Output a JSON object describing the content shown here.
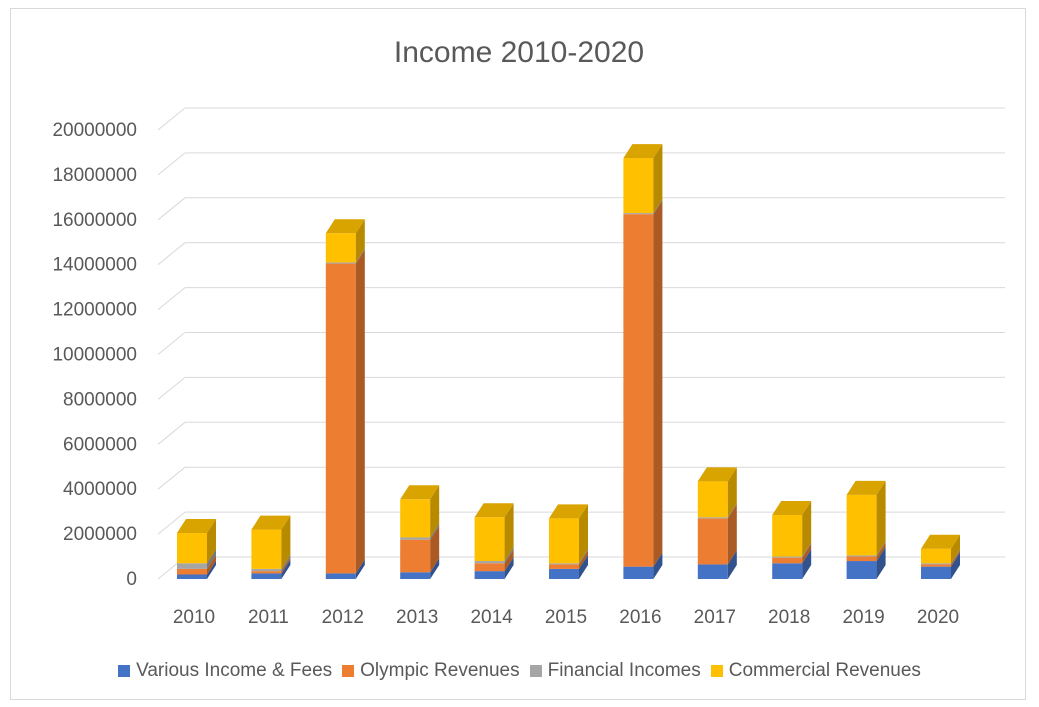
{
  "chart_data": {
    "type": "bar",
    "stacked": true,
    "style": "3d-column",
    "title": "Income 2010-2020",
    "xlabel": "",
    "ylabel": "",
    "ylim": [
      0,
      20000000
    ],
    "yticks": [
      0,
      2000000,
      4000000,
      6000000,
      8000000,
      10000000,
      12000000,
      14000000,
      16000000,
      18000000,
      20000000
    ],
    "ytick_labels": [
      "0",
      "2000000",
      "4000000",
      "6000000",
      "8000000",
      "10000000",
      "12000000",
      "14000000",
      "16000000",
      "18000000",
      "20000000"
    ],
    "grid": true,
    "legend_position": "bottom",
    "categories": [
      "2010",
      "2011",
      "2012",
      "2013",
      "2014",
      "2015",
      "2016",
      "2017",
      "2018",
      "2019",
      "2020"
    ],
    "series": [
      {
        "name": "Various Income & Fees",
        "color": "#4472C4",
        "values": [
          200000,
          250000,
          250000,
          300000,
          350000,
          450000,
          550000,
          650000,
          700000,
          800000,
          550000
        ]
      },
      {
        "name": "Olympic Revenues",
        "color": "#ED7D31",
        "values": [
          250000,
          100000,
          13800000,
          1450000,
          350000,
          200000,
          15700000,
          2050000,
          250000,
          200000,
          100000
        ]
      },
      {
        "name": "Financial Incomes",
        "color": "#A5A5A5",
        "values": [
          250000,
          100000,
          50000,
          100000,
          100000,
          50000,
          50000,
          50000,
          50000,
          50000,
          50000
        ]
      },
      {
        "name": "Commercial Revenues",
        "color": "#FFC000",
        "values": [
          1350000,
          1750000,
          1300000,
          1700000,
          1950000,
          2000000,
          2450000,
          1600000,
          1850000,
          2700000,
          650000
        ]
      }
    ]
  }
}
